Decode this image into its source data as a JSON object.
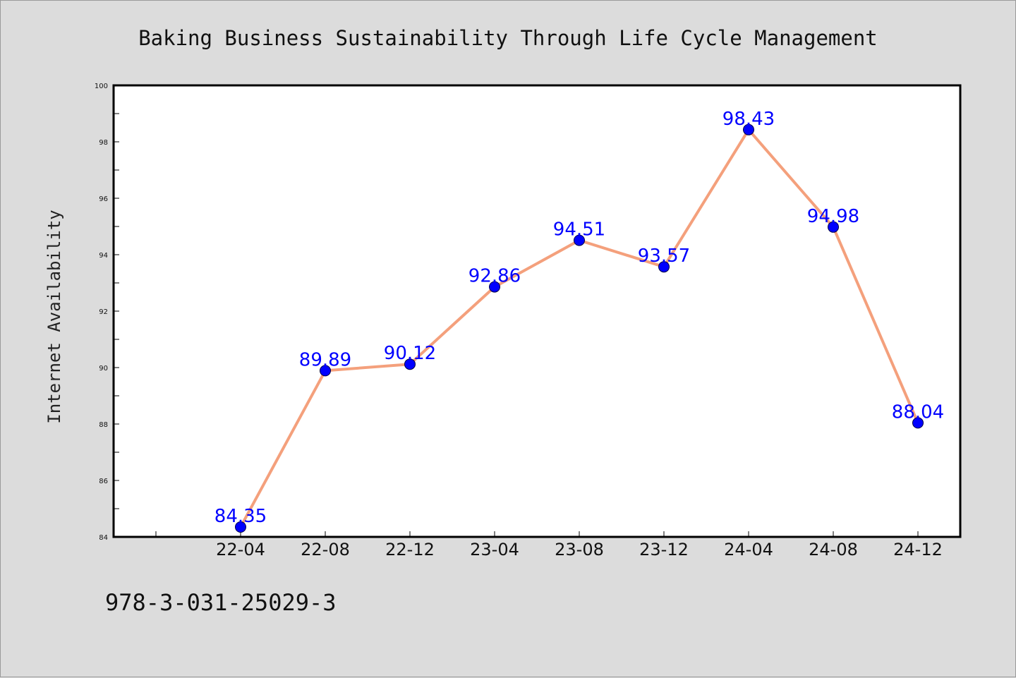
{
  "chart_data": {
    "type": "line",
    "title": "Baking Business Sustainability Through Life Cycle Management",
    "xlabel": "",
    "ylabel": "Internet Availability",
    "categories": [
      "22-04",
      "22-08",
      "22-12",
      "23-04",
      "23-08",
      "23-12",
      "24-04",
      "24-08",
      "24-12"
    ],
    "series": [
      {
        "values": [
          84.35,
          89.89,
          90.12,
          92.86,
          94.51,
          93.57,
          98.43,
          94.98,
          88.04
        ],
        "line_color": "#f4a07c",
        "marker_color": "#0000ff"
      }
    ],
    "data_labels": [
      "84.35",
      "89.89",
      "90.12",
      "92.86",
      "94.51",
      "93.57",
      "98.43",
      "94.98",
      "88.04"
    ],
    "ylim": [
      84,
      100
    ],
    "yticks": [
      84,
      86,
      88,
      90,
      92,
      94,
      96,
      98,
      100
    ],
    "ytick_labels": [
      "84",
      "86",
      "88",
      "90",
      "92",
      "94",
      "96",
      "98",
      "100"
    ],
    "grid": false,
    "legend": "none"
  },
  "footer": {
    "isbn": "978-3-031-25029-3"
  },
  "colors": {
    "background": "#dcdcdc",
    "plot_background": "#ffffff",
    "line": "#f4a07c",
    "marker": "#0000ff",
    "label": "#0000ff"
  }
}
